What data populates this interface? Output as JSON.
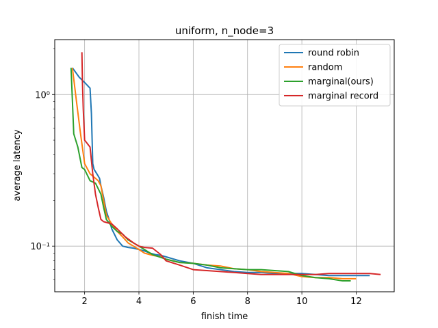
{
  "chart_data": {
    "type": "line",
    "title": "uniform, n_node=3",
    "xlabel": "finish time",
    "ylabel": "average latency",
    "xlim": [
      0.9,
      13.4
    ],
    "ylim": [
      0.05,
      2.3
    ],
    "yscale": "log",
    "grid": true,
    "legend_position": "upper right",
    "x_ticks": [
      2,
      4,
      6,
      8,
      10,
      12
    ],
    "x_tick_labels": [
      "2",
      "4",
      "6",
      "8",
      "10",
      "12"
    ],
    "y_ticks": [
      0.1,
      1.0
    ],
    "y_tick_labels": [
      "10⁻¹",
      "10⁰"
    ],
    "series": [
      {
        "name": "round robin",
        "color": "#1f77b4",
        "x": [
          1.55,
          1.8,
          2.0,
          2.2,
          2.25,
          2.3,
          2.35,
          2.45,
          2.55,
          2.6,
          2.7,
          2.8,
          2.9,
          3.0,
          3.2,
          3.4,
          3.6,
          3.8,
          4.0,
          4.2,
          4.4,
          4.6,
          4.8,
          5.0,
          5.5,
          6.0,
          6.5,
          7.0,
          7.5,
          8.0,
          8.5,
          9.0,
          9.5,
          10.0,
          10.5,
          11.0,
          11.5,
          12.0,
          12.5
        ],
        "y": [
          1.5,
          1.3,
          1.2,
          1.1,
          0.75,
          0.35,
          0.32,
          0.3,
          0.28,
          0.25,
          0.21,
          0.17,
          0.15,
          0.13,
          0.11,
          0.1,
          0.098,
          0.097,
          0.095,
          0.093,
          0.09,
          0.088,
          0.087,
          0.085,
          0.08,
          0.077,
          0.072,
          0.07,
          0.068,
          0.067,
          0.067,
          0.066,
          0.066,
          0.066,
          0.065,
          0.064,
          0.064,
          0.064,
          0.064
        ]
      },
      {
        "name": "random",
        "color": "#ff7f0e",
        "x": [
          1.55,
          1.7,
          1.85,
          2.0,
          2.2,
          2.4,
          2.5,
          2.6,
          2.7,
          2.8,
          3.0,
          3.2,
          3.4,
          3.6,
          3.8,
          4.0,
          4.2,
          4.5,
          4.8,
          5.0,
          5.5,
          6.0,
          6.5,
          7.0,
          7.5,
          8.0,
          8.5,
          9.0,
          9.5,
          10.0,
          10.5,
          11.0,
          11.5,
          12.0
        ],
        "y": [
          1.5,
          0.9,
          0.55,
          0.35,
          0.3,
          0.28,
          0.27,
          0.25,
          0.2,
          0.16,
          0.14,
          0.125,
          0.115,
          0.105,
          0.1,
          0.095,
          0.09,
          0.087,
          0.085,
          0.082,
          0.078,
          0.077,
          0.075,
          0.074,
          0.071,
          0.07,
          0.068,
          0.067,
          0.066,
          0.063,
          0.062,
          0.062,
          0.061,
          0.061
        ]
      },
      {
        "name": "marginal(ours)",
        "color": "#2ca02c",
        "x": [
          1.5,
          1.6,
          1.75,
          1.9,
          2.0,
          2.2,
          2.4,
          2.6,
          2.7,
          2.8,
          3.0,
          3.2,
          3.4,
          3.6,
          3.8,
          4.0,
          4.2,
          4.5,
          5.0,
          5.5,
          6.0,
          6.5,
          7.0,
          7.5,
          8.0,
          8.5,
          9.0,
          9.5,
          10.0,
          10.5,
          11.0,
          11.5,
          11.8
        ],
        "y": [
          1.5,
          0.55,
          0.45,
          0.33,
          0.32,
          0.27,
          0.26,
          0.22,
          0.18,
          0.15,
          0.135,
          0.125,
          0.12,
          0.11,
          0.105,
          0.1,
          0.095,
          0.088,
          0.082,
          0.078,
          0.077,
          0.075,
          0.072,
          0.071,
          0.07,
          0.07,
          0.069,
          0.068,
          0.064,
          0.062,
          0.061,
          0.059,
          0.059
        ]
      },
      {
        "name": "marginal record",
        "color": "#d62728",
        "x": [
          1.9,
          1.92,
          1.95,
          2.0,
          2.2,
          2.3,
          2.4,
          2.5,
          2.6,
          2.7,
          3.0,
          3.2,
          3.5,
          3.8,
          4.0,
          4.2,
          4.5,
          4.8,
          5.0,
          5.5,
          6.0,
          6.5,
          7.0,
          7.5,
          8.0,
          8.5,
          9.0,
          9.5,
          10.0,
          10.5,
          11.0,
          11.5,
          12.0,
          12.5,
          12.9
        ],
        "y": [
          1.9,
          1.2,
          0.8,
          0.5,
          0.45,
          0.3,
          0.22,
          0.18,
          0.15,
          0.145,
          0.14,
          0.13,
          0.115,
          0.105,
          0.1,
          0.098,
          0.097,
          0.088,
          0.08,
          0.075,
          0.07,
          0.069,
          0.068,
          0.067,
          0.066,
          0.065,
          0.065,
          0.065,
          0.065,
          0.065,
          0.066,
          0.066,
          0.066,
          0.066,
          0.065
        ]
      }
    ]
  }
}
